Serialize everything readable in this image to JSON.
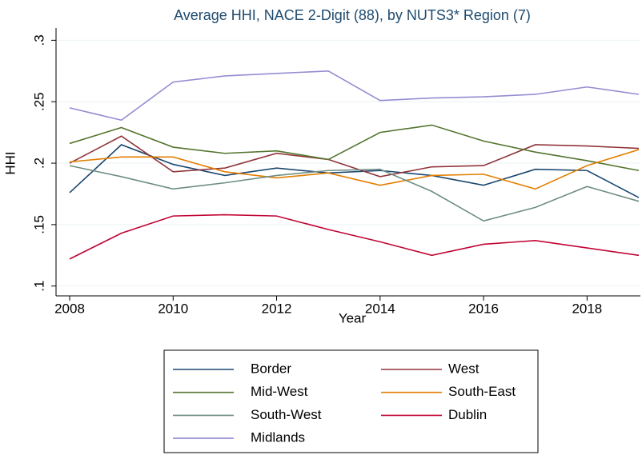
{
  "chart_data": {
    "type": "line",
    "title": "Average HHI, NACE 2-Digit (88), by NUTS3* Region (7)",
    "x_label": "Year",
    "y_label": "HHI",
    "x": [
      2008,
      2009,
      2010,
      2011,
      2012,
      2013,
      2014,
      2015,
      2016,
      2017,
      2018,
      2019
    ],
    "xlim": [
      2008,
      2019
    ],
    "xticks": [
      2008,
      2010,
      2012,
      2014,
      2016,
      2018
    ],
    "ylim": [
      0.092,
      0.31
    ],
    "yticks": [
      {
        "value": 0.1,
        "label": ".1"
      },
      {
        "value": 0.15,
        "label": ".15"
      },
      {
        "value": 0.2,
        "label": ".2"
      },
      {
        "value": 0.25,
        "label": ".25"
      },
      {
        "value": 0.3,
        "label": ".3"
      }
    ],
    "grid": true,
    "legend_position": "bottom",
    "legend_columns": 2,
    "series": [
      {
        "name": "Border",
        "color": "#1a476f",
        "values": [
          0.176,
          0.215,
          0.199,
          0.19,
          0.196,
          0.192,
          0.194,
          0.19,
          0.182,
          0.195,
          0.194,
          0.172
        ]
      },
      {
        "name": "West",
        "color": "#90353b",
        "values": [
          0.2,
          0.222,
          0.193,
          0.196,
          0.208,
          0.203,
          0.189,
          0.197,
          0.198,
          0.215,
          0.214,
          0.212
        ]
      },
      {
        "name": "Mid-West",
        "color": "#55752f",
        "values": [
          0.216,
          0.229,
          0.213,
          0.208,
          0.21,
          0.203,
          0.225,
          0.231,
          0.218,
          0.209,
          0.202,
          0.194
        ]
      },
      {
        "name": "South-East",
        "color": "#e37e00",
        "values": [
          0.201,
          0.205,
          0.205,
          0.193,
          0.188,
          0.192,
          0.182,
          0.19,
          0.191,
          0.179,
          0.198,
          0.211
        ]
      },
      {
        "name": "South-West",
        "color": "#6e8e84",
        "values": [
          0.198,
          0.189,
          0.179,
          0.184,
          0.19,
          0.194,
          0.195,
          0.177,
          0.153,
          0.164,
          0.181,
          0.169
        ]
      },
      {
        "name": "Dublin",
        "color": "#c10534",
        "values": [
          0.122,
          0.143,
          0.157,
          0.158,
          0.157,
          0.146,
          0.136,
          0.125,
          0.134,
          0.137,
          0.131,
          0.125
        ]
      },
      {
        "name": "Midlands",
        "color": "#938dd2",
        "values": [
          0.245,
          0.235,
          0.266,
          0.271,
          0.273,
          0.275,
          0.251,
          0.253,
          0.254,
          0.256,
          0.262,
          0.256
        ]
      }
    ]
  }
}
